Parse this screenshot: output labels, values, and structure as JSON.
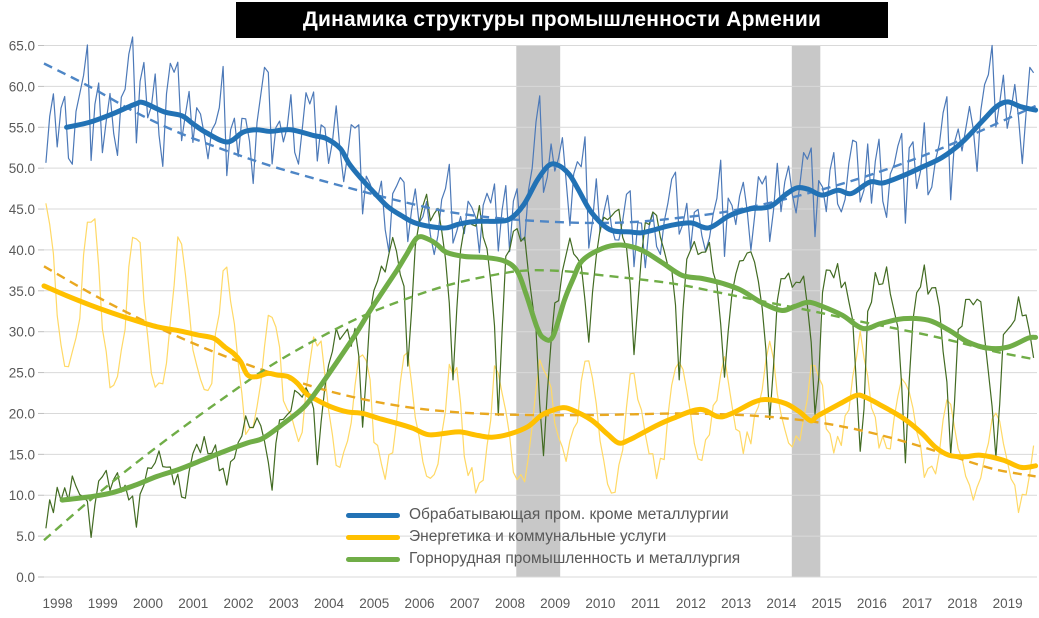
{
  "title": "Динамика структуры промышленности Армении",
  "chart_data": {
    "type": "line",
    "title": "Динамика структуры промышленности Армении",
    "grid": true,
    "legend_position": "inside-bottom-center",
    "units": "percent share of industry",
    "x_axis": {
      "min": 1998.0,
      "max": 2019.95,
      "tick_labels": [
        "1998",
        "1999",
        "2000",
        "2001",
        "2002",
        "2003",
        "2004",
        "2005",
        "2006",
        "2007",
        "2008",
        "2009",
        "2010",
        "2011",
        "2012",
        "2013",
        "2014",
        "2015",
        "2016",
        "2017",
        "2018",
        "2019"
      ]
    },
    "y_axis": {
      "min": 0,
      "max": 65,
      "step": 5,
      "tick_labels": [
        "0.0",
        "5.0",
        "10.0",
        "15.0",
        "20.0",
        "25.0",
        "30.0",
        "35.0",
        "40.0",
        "45.0",
        "50.0",
        "55.0",
        "60.0",
        "65.0"
      ]
    },
    "style": {
      "grid_color": "#D9D9D9",
      "tick_color": "#BFBFBF",
      "axis_text_color": "#595959",
      "band_color": "#C8C8C8",
      "title_bg": "#000000",
      "title_fg": "#FFFFFF",
      "legend_text_color": "#595959",
      "background": "#FFFFFF"
    },
    "recession_bands": [
      {
        "from": 2008.44,
        "to": 2009.41
      },
      {
        "from": 2014.53,
        "to": 2015.16
      }
    ],
    "line_styles": {
      "raw": "thin monthly line",
      "smooth": "thick moving-average line",
      "trend": "dashed trend line"
    },
    "series": [
      {
        "name": "Обрабатывающая пром. кроме металлургии",
        "color": {
          "raw": "#4C79B8",
          "smooth": "#2272B5",
          "trend": "#4E86C6"
        },
        "smooth": {
          "x": [
            1998.5,
            1999.0,
            1999.5,
            2000.0,
            2000.2,
            2000.65,
            2001.05,
            2001.3,
            2001.6,
            2002.05,
            2002.4,
            2002.7,
            2003.0,
            2003.45,
            2003.95,
            2004.25,
            2004.55,
            2004.75,
            2005.0,
            2005.3,
            2005.6,
            2005.9,
            2006.2,
            2006.6,
            2006.9,
            2007.2,
            2007.6,
            2008.0,
            2008.3,
            2008.6,
            2008.9,
            2009.15,
            2009.35,
            2009.6,
            2009.8,
            2010.1,
            2010.5,
            2010.95,
            2011.2,
            2011.45,
            2011.85,
            2012.3,
            2012.7,
            2013.15,
            2013.6,
            2014.05,
            2014.4,
            2014.65,
            2014.9,
            2015.2,
            2015.55,
            2015.85,
            2016.25,
            2016.55,
            2017.0,
            2017.4,
            2017.85,
            2018.3,
            2018.75,
            2019.05,
            2019.3,
            2019.6,
            2019.92
          ],
          "y": [
            55.0,
            55.6,
            56.6,
            57.8,
            58.0,
            56.9,
            56.4,
            55.4,
            54.3,
            53.2,
            54.4,
            54.7,
            54.5,
            54.7,
            54.0,
            53.6,
            52.4,
            50.5,
            48.8,
            47.0,
            45.3,
            44.2,
            43.3,
            42.8,
            42.7,
            43.2,
            43.5,
            43.5,
            43.8,
            45.5,
            48.5,
            50.3,
            50.4,
            49.3,
            47.5,
            44.6,
            42.5,
            42.2,
            42.1,
            42.4,
            43.0,
            43.3,
            42.7,
            44.2,
            45.0,
            45.3,
            46.8,
            47.6,
            47.4,
            46.7,
            47.3,
            46.9,
            48.3,
            48.2,
            49.1,
            50.1,
            51.3,
            53.2,
            55.8,
            57.5,
            58.1,
            57.5,
            57.1
          ]
        },
        "trend": {
          "x": [
            1998.0,
            1999,
            2000,
            2001,
            2002,
            2003,
            2004,
            2005,
            2006,
            2007,
            2008,
            2009,
            2010,
            2011,
            2012,
            2013,
            2014,
            2015,
            2016,
            2017,
            2018,
            2019,
            2019.92
          ],
          "y": [
            62.8,
            60.0,
            56.9,
            54.3,
            52.2,
            50.3,
            48.7,
            47.2,
            45.8,
            44.6,
            43.9,
            43.5,
            43.3,
            43.4,
            43.9,
            44.6,
            45.7,
            47.1,
            48.7,
            50.6,
            52.8,
            55.3,
            57.6
          ]
        },
        "raw_model": {
          "seed": 11,
          "jitter": 2.2,
          "seasonal_shape": [
            -0.55,
            0.15,
            0.45,
            -0.35,
            0.1,
            0.45,
            -0.25,
            -0.6,
            0.15,
            0.5,
            0.75,
            1.0
          ],
          "amplitude_by_year": [
            8,
            8,
            8,
            7.5,
            7.5,
            7,
            6.5,
            6,
            5.5,
            5.5,
            8,
            6.5,
            5.5,
            7,
            6,
            5.5,
            6.5,
            7,
            7,
            7.5,
            8,
            8
          ]
        }
      },
      {
        "name": "Энергетика и коммунальные услуги",
        "color": {
          "raw": "#FFD966",
          "smooth": "#FFC000",
          "trend": "#E9A820"
        },
        "smooth": {
          "x": [
            1998.0,
            1998.5,
            1999.0,
            1999.5,
            2000.0,
            2000.5,
            2001.0,
            2001.4,
            2001.75,
            2002.0,
            2002.2,
            2002.35,
            2002.5,
            2002.7,
            2002.95,
            2003.15,
            2003.4,
            2003.6,
            2003.8,
            2004.05,
            2004.35,
            2004.7,
            2005.05,
            2005.4,
            2005.8,
            2006.15,
            2006.5,
            2006.9,
            2007.2,
            2007.6,
            2007.9,
            2008.3,
            2008.7,
            2009.0,
            2009.25,
            2009.45,
            2009.65,
            2010.1,
            2010.45,
            2010.7,
            2010.95,
            2011.5,
            2011.9,
            2012.5,
            2012.9,
            2013.2,
            2013.7,
            2014.0,
            2014.4,
            2014.7,
            2014.95,
            2015.1,
            2015.6,
            2015.95,
            2016.15,
            2016.5,
            2017.0,
            2017.4,
            2017.7,
            2018.0,
            2018.35,
            2018.7,
            2019.2,
            2019.6,
            2019.92
          ],
          "y": [
            35.6,
            34.4,
            33.3,
            32.3,
            31.4,
            30.6,
            30.1,
            29.6,
            29.2,
            28.1,
            27.3,
            26.3,
            24.7,
            24.5,
            24.9,
            24.7,
            24.5,
            23.7,
            22.4,
            21.6,
            20.8,
            20.2,
            20.0,
            19.4,
            18.8,
            18.2,
            17.4,
            17.6,
            17.75,
            17.3,
            17.1,
            17.5,
            18.4,
            19.8,
            20.4,
            20.7,
            20.5,
            19.2,
            17.5,
            16.4,
            16.8,
            18.4,
            19.4,
            20.5,
            19.6,
            20.0,
            21.4,
            21.7,
            21.2,
            20.2,
            19.1,
            19.7,
            21.2,
            22.2,
            22.0,
            21.0,
            19.4,
            17.6,
            15.9,
            14.9,
            14.7,
            14.9,
            14.3,
            13.4,
            13.6
          ]
        },
        "trend": {
          "x": [
            1998.0,
            1999,
            2000,
            2001,
            2002,
            2003,
            2004,
            2005,
            2006,
            2007,
            2008,
            2009,
            2010,
            2011,
            2012,
            2013,
            2014,
            2015,
            2016,
            2017,
            2018,
            2019,
            2019.92
          ],
          "y": [
            38.0,
            34.8,
            31.9,
            29.3,
            27.0,
            25.0,
            23.2,
            21.8,
            20.8,
            20.2,
            19.9,
            19.8,
            19.8,
            19.9,
            20.0,
            19.9,
            19.6,
            19.0,
            18.0,
            16.6,
            14.9,
            13.2,
            12.3
          ]
        },
        "raw_model": {
          "seed": 23,
          "jitter": 1.6,
          "seasonal_shape": [
            1.0,
            0.8,
            0.35,
            -0.2,
            -0.5,
            -0.68,
            -0.75,
            -0.7,
            -0.5,
            -0.05,
            0.45,
            0.95
          ],
          "amplitude_by_year": [
            11.5,
            11.5,
            11,
            10,
            9,
            8.5,
            8,
            8,
            8,
            8,
            7.5,
            7,
            7.5,
            7,
            6.5,
            6,
            6,
            6.5,
            6.5,
            6,
            5.5,
            5.5
          ]
        }
      },
      {
        "name": "Горнорудная промышленность и металлургия",
        "color": {
          "raw": "#426B22",
          "smooth": "#70AD47",
          "trend": "#70AD47"
        },
        "smooth": {
          "x": [
            1998.4,
            1999.0,
            1999.5,
            2000.0,
            2000.5,
            2001.0,
            2001.5,
            2002.0,
            2002.5,
            2002.85,
            2003.3,
            2003.75,
            2004.1,
            2004.5,
            2004.9,
            2005.2,
            2005.5,
            2005.8,
            2006.0,
            2006.25,
            2006.5,
            2006.7,
            2006.9,
            2007.3,
            2007.7,
            2008.15,
            2008.45,
            2008.65,
            2008.9,
            2009.05,
            2009.25,
            2009.5,
            2009.7,
            2009.9,
            2010.35,
            2010.75,
            2011.2,
            2011.65,
            2012.1,
            2012.55,
            2013.0,
            2013.4,
            2013.85,
            2014.3,
            2014.6,
            2014.9,
            2015.2,
            2015.65,
            2016.1,
            2016.5,
            2017.0,
            2017.55,
            2018.0,
            2018.4,
            2018.85,
            2019.3,
            2019.75,
            2019.92
          ],
          "y": [
            9.4,
            9.8,
            10.3,
            11.2,
            12.3,
            13.2,
            14.3,
            15.4,
            16.4,
            17.0,
            18.8,
            20.8,
            23.3,
            26.5,
            29.8,
            32.5,
            35.0,
            37.5,
            39.3,
            41.5,
            41.3,
            40.6,
            39.7,
            39.2,
            39.1,
            38.7,
            37.5,
            34.7,
            30.5,
            29.2,
            29.4,
            33.8,
            36.5,
            38.7,
            40.2,
            40.6,
            40.0,
            38.5,
            36.9,
            36.5,
            35.9,
            35.1,
            33.6,
            32.6,
            33.1,
            33.6,
            33.1,
            32.0,
            30.4,
            31.0,
            31.6,
            31.4,
            30.2,
            28.8,
            28.0,
            28.1,
            29.2,
            29.3
          ]
        },
        "trend": {
          "x": [
            1998.0,
            1999,
            2000,
            2001,
            2002,
            2003,
            2004,
            2005,
            2006,
            2007,
            2008,
            2008.7,
            2009.5,
            2010,
            2011,
            2012,
            2013,
            2014,
            2015,
            2016,
            2017,
            2018,
            2019,
            2019.92
          ],
          "y": [
            4.5,
            9.3,
            13.8,
            18.0,
            22.0,
            25.8,
            29.0,
            31.8,
            34.0,
            35.8,
            37.0,
            37.5,
            37.4,
            37.1,
            36.5,
            35.8,
            34.7,
            33.6,
            32.5,
            31.3,
            30.2,
            29.0,
            27.6,
            26.6
          ]
        },
        "raw_model": {
          "seed": 37,
          "jitter": 1.8,
          "seasonal_shape": [
            -1.0,
            -0.5,
            0.05,
            0.2,
            0.3,
            0.33,
            0.3,
            0.33,
            0.28,
            0.12,
            -0.08,
            -0.45
          ],
          "amplitude_by_year": [
            3.5,
            4,
            4.5,
            5,
            6,
            7,
            9,
            11,
            13,
            15,
            18,
            13,
            12,
            12,
            12,
            13,
            14,
            15,
            17,
            16,
            15,
            13
          ]
        }
      }
    ]
  }
}
